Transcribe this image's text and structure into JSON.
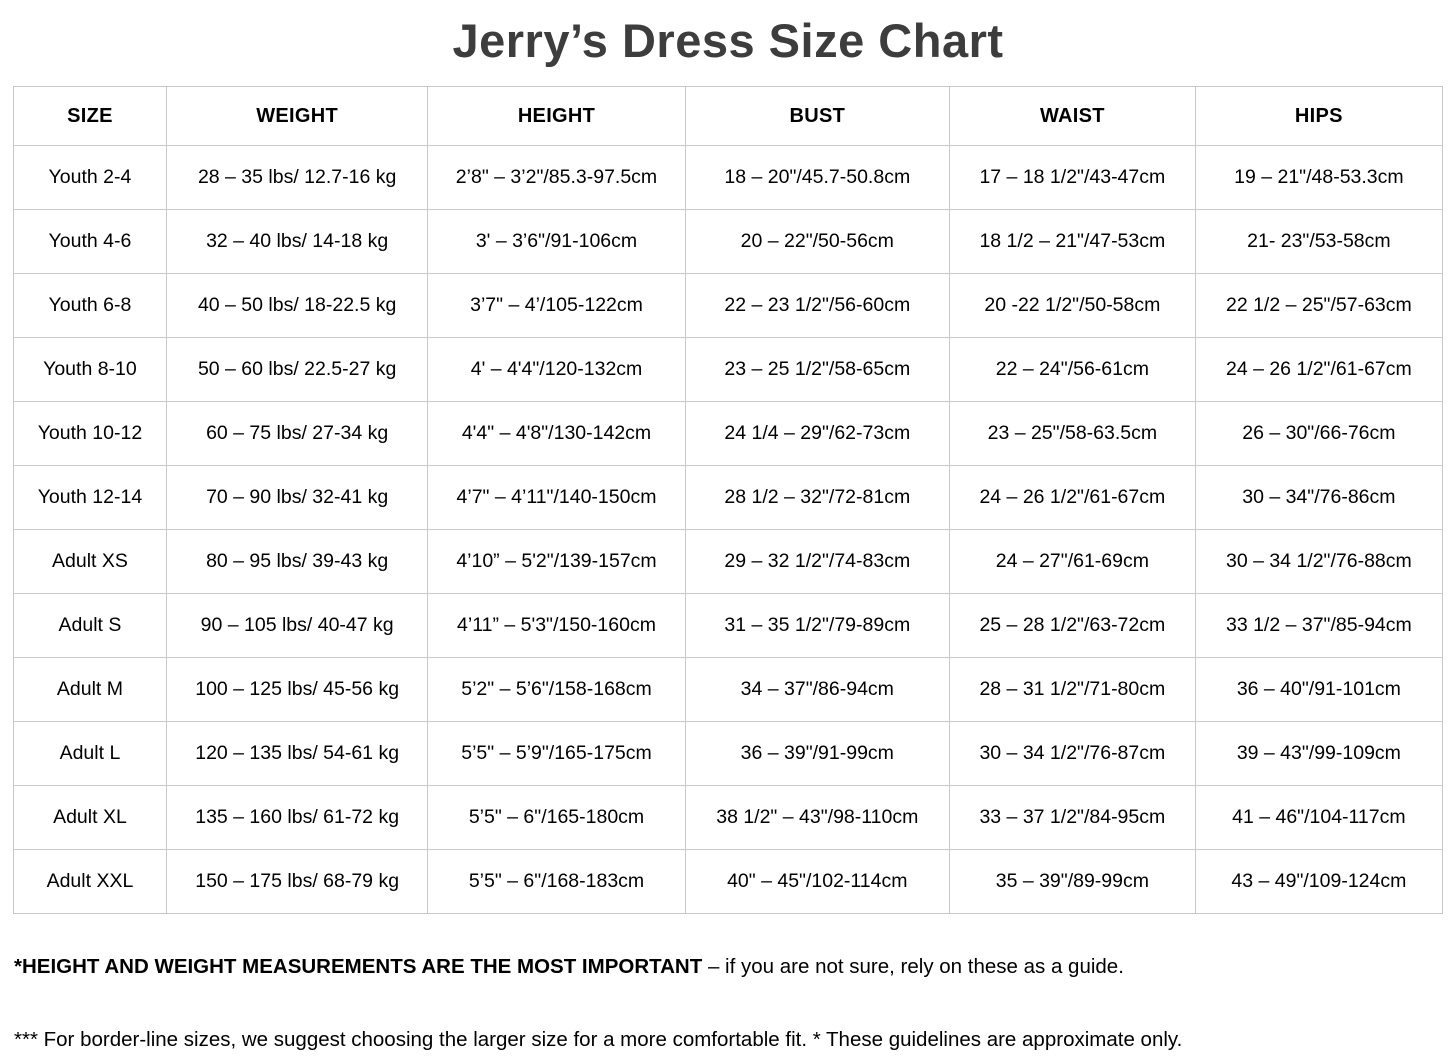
{
  "page": {
    "title": "Jerry’s Dress Size Chart"
  },
  "colors": {
    "background": "#ffffff",
    "title_text": "#3d3d3d",
    "body_text": "#000000",
    "table_border": "#c8c8c8"
  },
  "table": {
    "columns": [
      {
        "key": "size",
        "label": "SIZE"
      },
      {
        "key": "weight",
        "label": "WEIGHT"
      },
      {
        "key": "height",
        "label": "HEIGHT"
      },
      {
        "key": "bust",
        "label": "BUST"
      },
      {
        "key": "waist",
        "label": "WAIST"
      },
      {
        "key": "hips",
        "label": "HIPS"
      }
    ],
    "rows": [
      {
        "size": "Youth 2-4",
        "weight": "28 – 35 lbs/ 12.7-16 kg",
        "height": "2’8\" – 3’2\"/85.3-97.5cm",
        "bust": "18 – 20\"/45.7-50.8cm",
        "waist": "17 – 18 1/2\"/43-47cm",
        "hips": "19 – 21\"/48-53.3cm"
      },
      {
        "size": "Youth 4-6",
        "weight": "32 – 40 lbs/ 14-18 kg",
        "height": "3' – 3’6\"/91-106cm",
        "bust": "20 – 22\"/50-56cm",
        "waist": "18 1/2 – 21\"/47-53cm",
        "hips": "21- 23\"/53-58cm"
      },
      {
        "size": "Youth 6-8",
        "weight": "40 – 50 lbs/ 18-22.5 kg",
        "height": "3’7\" – 4’/105-122cm",
        "bust": "22 – 23 1/2\"/56-60cm",
        "waist": "20 -22 1/2\"/50-58cm",
        "hips": "22 1/2 – 25\"/57-63cm"
      },
      {
        "size": "Youth 8-10",
        "weight": "50 – 60 lbs/ 22.5-27 kg",
        "height": "4' – 4'4\"/120-132cm",
        "bust": "23 – 25 1/2\"/58-65cm",
        "waist": "22 – 24\"/56-61cm",
        "hips": "24 – 26 1/2\"/61-67cm"
      },
      {
        "size": "Youth 10-12",
        "weight": "60 – 75 lbs/ 27-34 kg",
        "height": "4'4\" – 4'8\"/130-142cm",
        "bust": "24 1/4 – 29\"/62-73cm",
        "waist": "23 – 25\"/58-63.5cm",
        "hips": "26 – 30\"/66-76cm"
      },
      {
        "size": "Youth 12-14",
        "weight": "70 – 90 lbs/ 32-41 kg",
        "height": "4’7\" – 4’11\"/140-150cm",
        "bust": "28 1/2 – 32\"/72-81cm",
        "waist": "24 – 26 1/2\"/61-67cm",
        "hips": "30 – 34\"/76-86cm"
      },
      {
        "size": "Adult XS",
        "weight": "80 – 95 lbs/ 39-43 kg",
        "height": "4’10” – 5'2\"/139-157cm",
        "bust": "29 – 32 1/2\"/74-83cm",
        "waist": "24 – 27\"/61-69cm",
        "hips": "30 – 34 1/2\"/76-88cm"
      },
      {
        "size": "Adult S",
        "weight": "90 – 105 lbs/ 40-47 kg",
        "height": "4’11” – 5'3\"/150-160cm",
        "bust": "31 – 35 1/2\"/79-89cm",
        "waist": "25 – 28 1/2\"/63-72cm",
        "hips": "33 1/2 – 37\"/85-94cm"
      },
      {
        "size": "Adult M",
        "weight": "100 – 125 lbs/ 45-56 kg",
        "height": "5’2\" – 5’6\"/158-168cm",
        "bust": "34 – 37\"/86-94cm",
        "waist": "28 – 31 1/2\"/71-80cm",
        "hips": "36 – 40\"/91-101cm"
      },
      {
        "size": "Adult L",
        "weight": "120 – 135 lbs/ 54-61 kg",
        "height": "5’5\" – 5’9\"/165-175cm",
        "bust": "36 – 39\"/91-99cm",
        "waist": "30 – 34 1/2\"/76-87cm",
        "hips": "39 – 43\"/99-109cm"
      },
      {
        "size": "Adult XL",
        "weight": "135 – 160 lbs/ 61-72 kg",
        "height": "5’5\" – 6\"/165-180cm",
        "bust": "38 1/2\" – 43\"/98-110cm",
        "waist": "33 – 37 1/2\"/84-95cm",
        "hips": "41 – 46\"/104-117cm"
      },
      {
        "size": "Adult XXL",
        "weight": "150 – 175 lbs/ 68-79 kg",
        "height": "5’5\" – 6\"/168-183cm",
        "bust": "40\" – 45\"/102-114cm",
        "waist": "35 – 39\"/89-99cm",
        "hips": "43 – 49\"/109-124cm"
      }
    ]
  },
  "footnotes": {
    "note1_bold": "*HEIGHT AND WEIGHT MEASUREMENTS ARE THE MOST IMPORTANT",
    "note1_rest": " – if you are not sure, rely on these as a guide.",
    "note2": "*** For border-line sizes, we suggest choosing the larger size for a more comfortable fit. * These guidelines are approximate only."
  }
}
